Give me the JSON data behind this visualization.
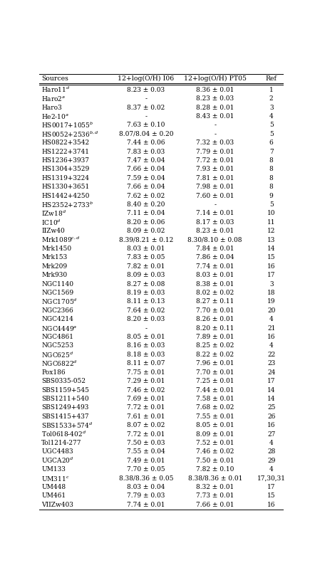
{
  "col_headers": [
    "Sources",
    "12+log(O/H) I06",
    "12+log(O/H) PT05",
    "Ref"
  ],
  "rows": [
    [
      "Haro11$^{d}$",
      "8.23 ± 0.03",
      "8.36 ± 0.01",
      "1"
    ],
    [
      "Haro2$^{a}$",
      "-",
      "8.23 ± 0.03",
      "2"
    ],
    [
      "Haro3",
      "8.37 ± 0.02",
      "8.28 ± 0.01",
      "3"
    ],
    [
      "He2-10$^{a}$",
      "-",
      "8.43 ± 0.01",
      "4"
    ],
    [
      "HS0017+1055$^{b}$",
      "7.63 ± 0.10",
      "-",
      "5"
    ],
    [
      "HS0052+2536$^{b,d}$",
      "8.07/8.04 ± 0.20",
      "-",
      "5"
    ],
    [
      "HS0822+3542",
      "7.44 ± 0.06",
      "7.32 ± 0.03",
      "6"
    ],
    [
      "HS1222+3741",
      "7.83 ± 0.03",
      "7.79 ± 0.01",
      "7"
    ],
    [
      "HS1236+3937",
      "7.47 ± 0.04",
      "7.72 ± 0.01",
      "8"
    ],
    [
      "HS1304+3529",
      "7.66 ± 0.04",
      "7.93 ± 0.01",
      "8"
    ],
    [
      "HS1319+3224",
      "7.59 ± 0.04",
      "7.81 ± 0.01",
      "8"
    ],
    [
      "HS1330+3651",
      "7.66 ± 0.04",
      "7.98 ± 0.01",
      "8"
    ],
    [
      "HS1442+4250",
      "7.62 ± 0.02",
      "7.60 ± 0.01",
      "9"
    ],
    [
      "HS2352+2733$^{b}$",
      "8.40 ± 0.20",
      "-",
      "5"
    ],
    [
      "IZw18$^{d}$",
      "7.11 ± 0.04",
      "7.14 ± 0.01",
      "10"
    ],
    [
      "IC10$^{d}$",
      "8.20 ± 0.06",
      "8.17 ± 0.03",
      "11"
    ],
    [
      "IIZw40",
      "8.09 ± 0.02",
      "8.23 ± 0.01",
      "12"
    ],
    [
      "Mrk1089$^{c,d}$",
      "8.39/8.21 ± 0.12",
      "8.30/8.10 ± 0.08",
      "13"
    ],
    [
      "Mrk1450",
      "8.03 ± 0.01",
      "7.84 ± 0.01",
      "14"
    ],
    [
      "Mrk153",
      "7.83 ± 0.05",
      "7.86 ± 0.04",
      "15"
    ],
    [
      "Mrk209",
      "7.82 ± 0.01",
      "7.74 ± 0.01",
      "16"
    ],
    [
      "Mrk930",
      "8.09 ± 0.03",
      "8.03 ± 0.01",
      "17"
    ],
    [
      "NGC1140",
      "8.27 ± 0.08",
      "8.38 ± 0.01",
      "3"
    ],
    [
      "NGC1569",
      "8.19 ± 0.03",
      "8.02 ± 0.02",
      "18"
    ],
    [
      "NGC1705$^{d}$",
      "8.11 ± 0.13",
      "8.27 ± 0.11",
      "19"
    ],
    [
      "NGC2366",
      "7.64 ± 0.02",
      "7.70 ± 0.01",
      "20"
    ],
    [
      "NGC4214",
      "8.20 ± 0.03",
      "8.26 ± 0.01",
      "4"
    ],
    [
      "NGC4449$^{a}$",
      "-",
      "8.20 ± 0.11",
      "21"
    ],
    [
      "NGC4861",
      "8.05 ± 0.01",
      "7.89 ± 0.01",
      "16"
    ],
    [
      "NGC5253",
      "8.16 ± 0.03",
      "8.25 ± 0.02",
      "4"
    ],
    [
      "NGC625$^{d}$",
      "8.18 ± 0.03",
      "8.22 ± 0.02",
      "22"
    ],
    [
      "NGC6822$^{d}$",
      "8.11 ± 0.07",
      "7.96 ± 0.01",
      "23"
    ],
    [
      "Pox186",
      "7.75 ± 0.01",
      "7.70 ± 0.01",
      "24"
    ],
    [
      "SBS0335-052",
      "7.29 ± 0.01",
      "7.25 ± 0.01",
      "17"
    ],
    [
      "SBS1159+545",
      "7.46 ± 0.02",
      "7.44 ± 0.01",
      "14"
    ],
    [
      "SBS1211+540",
      "7.69 ± 0.01",
      "7.58 ± 0.01",
      "14"
    ],
    [
      "SBS1249+493",
      "7.72 ± 0.01",
      "7.68 ± 0.02",
      "25"
    ],
    [
      "SBS1415+437",
      "7.61 ± 0.01",
      "7.55 ± 0.01",
      "26"
    ],
    [
      "SBS1533+574$^{d}$",
      "8.07 ± 0.02",
      "8.05 ± 0.01",
      "16"
    ],
    [
      "Tol0618-402$^{d}$",
      "7.72 ± 0.01",
      "8.09 ± 0.01",
      "27"
    ],
    [
      "Tol1214-277",
      "7.50 ± 0.03",
      "7.52 ± 0.01",
      "4"
    ],
    [
      "UGC4483",
      "7.55 ± 0.04",
      "7.46 ± 0.02",
      "28"
    ],
    [
      "UGCA20$^{d}$",
      "7.49 ± 0.01",
      "7.50 ± 0.01",
      "29"
    ],
    [
      "UM133",
      "7.70 ± 0.05",
      "7.82 ± 0.10",
      "4"
    ],
    [
      "UM311$^{c}$",
      "8.38/8.36 ± 0.05",
      "8.38/8.36 ± 0.01",
      "17,30,31"
    ],
    [
      "UM448",
      "8.03 ± 0.04",
      "8.32 ± 0.01",
      "17"
    ],
    [
      "UM461",
      "7.79 ± 0.03",
      "7.73 ± 0.01",
      "15"
    ],
    [
      "VIIZw403",
      "7.74 ± 0.01",
      "7.66 ± 0.01",
      "16"
    ]
  ],
  "bg_color": "#ffffff",
  "text_color": "#000000",
  "line_color": "#000000",
  "font_size": 6.5,
  "header_font_size": 6.7
}
